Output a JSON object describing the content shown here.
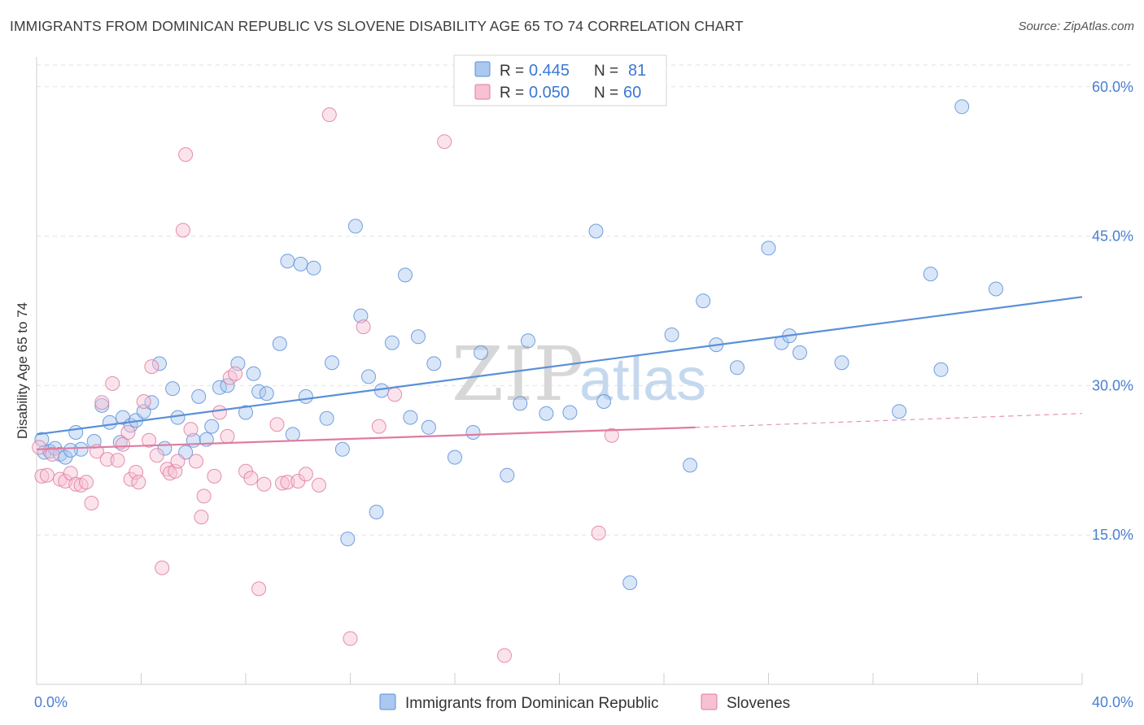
{
  "header": {
    "title": "IMMIGRANTS FROM DOMINICAN REPUBLIC VS SLOVENE DISABILITY AGE 65 TO 74 CORRELATION CHART",
    "source": "Source: ZipAtlas.com"
  },
  "watermark": {
    "zip": "ZIP",
    "atlas": "atlas"
  },
  "legend_stats": {
    "r_label": "R =",
    "n_label": "N =",
    "rows": [
      {
        "r": "0.445",
        "n": "81",
        "color": "#8fb6ea"
      },
      {
        "r": "0.050",
        "n": "60",
        "color": "#f4a6c0"
      }
    ]
  },
  "chart_data": {
    "type": "scatter",
    "title": "IMMIGRANTS FROM DOMINICAN REPUBLIC VS SLOVENE DISABILITY AGE 65 TO 74 CORRELATION CHART",
    "xlabel": "",
    "ylabel": "Disability Age 65 to 74",
    "xlim": [
      0,
      40
    ],
    "ylim": [
      0,
      63
    ],
    "x_tick_labels": [
      {
        "value": 0,
        "label": "0.0%"
      },
      {
        "value": 40,
        "label": "40.0%"
      }
    ],
    "y_tick_labels": [
      {
        "value": 15,
        "label": "15.0%"
      },
      {
        "value": 30,
        "label": "30.0%"
      },
      {
        "value": 45,
        "label": "45.0%"
      },
      {
        "value": 60,
        "label": "60.0%"
      }
    ],
    "grid": true,
    "legend_position": "bottom-center",
    "series": [
      {
        "name": "Immigrants from Dominican Republic",
        "color": "#5b8fd9",
        "fill": "#aac8f0",
        "trend": {
          "x": [
            0,
            40
          ],
          "y": [
            25.1,
            38.9
          ],
          "dashed_from": null
        },
        "points": [
          [
            0.3,
            23.3
          ],
          [
            0.5,
            23.4
          ],
          [
            0.7,
            23.7
          ],
          [
            0.9,
            23.1
          ],
          [
            1.1,
            22.8
          ],
          [
            1.5,
            25.3
          ],
          [
            1.7,
            23.6
          ],
          [
            2.2,
            24.4
          ],
          [
            2.5,
            28.0
          ],
          [
            2.8,
            26.3
          ],
          [
            3.2,
            24.3
          ],
          [
            3.3,
            26.8
          ],
          [
            3.6,
            26.0
          ],
          [
            3.8,
            26.5
          ],
          [
            4.1,
            27.4
          ],
          [
            4.4,
            28.3
          ],
          [
            4.7,
            32.2
          ],
          [
            4.9,
            23.7
          ],
          [
            5.2,
            29.7
          ],
          [
            5.4,
            26.8
          ],
          [
            5.7,
            23.3
          ],
          [
            6.0,
            24.5
          ],
          [
            6.2,
            28.9
          ],
          [
            6.5,
            24.6
          ],
          [
            6.7,
            25.9
          ],
          [
            7.0,
            29.8
          ],
          [
            7.3,
            30.0
          ],
          [
            7.7,
            32.2
          ],
          [
            8.0,
            27.3
          ],
          [
            8.3,
            31.2
          ],
          [
            8.5,
            29.4
          ],
          [
            8.8,
            29.2
          ],
          [
            9.3,
            34.2
          ],
          [
            9.6,
            42.5
          ],
          [
            9.8,
            25.1
          ],
          [
            10.1,
            42.2
          ],
          [
            10.3,
            28.9
          ],
          [
            10.6,
            41.8
          ],
          [
            11.1,
            26.7
          ],
          [
            11.3,
            32.3
          ],
          [
            11.7,
            23.6
          ],
          [
            11.9,
            14.6
          ],
          [
            12.2,
            46.0
          ],
          [
            12.4,
            37.0
          ],
          [
            12.7,
            30.9
          ],
          [
            13.0,
            17.3
          ],
          [
            13.2,
            29.5
          ],
          [
            13.6,
            34.3
          ],
          [
            14.1,
            41.1
          ],
          [
            14.3,
            26.8
          ],
          [
            14.6,
            34.9
          ],
          [
            15.0,
            25.8
          ],
          [
            15.2,
            32.2
          ],
          [
            16.0,
            22.8
          ],
          [
            16.7,
            25.3
          ],
          [
            17.0,
            33.3
          ],
          [
            18.0,
            21.0
          ],
          [
            18.5,
            28.2
          ],
          [
            18.8,
            34.5
          ],
          [
            19.5,
            27.2
          ],
          [
            20.4,
            27.3
          ],
          [
            21.4,
            45.5
          ],
          [
            21.7,
            28.4
          ],
          [
            22.7,
            10.2
          ],
          [
            24.3,
            35.1
          ],
          [
            25.0,
            22.0
          ],
          [
            25.5,
            38.5
          ],
          [
            26.0,
            34.1
          ],
          [
            26.8,
            31.8
          ],
          [
            28.0,
            43.8
          ],
          [
            28.5,
            34.3
          ],
          [
            28.8,
            35.0
          ],
          [
            29.2,
            33.3
          ],
          [
            30.8,
            32.3
          ],
          [
            33.0,
            27.4
          ],
          [
            34.2,
            41.2
          ],
          [
            34.6,
            31.6
          ],
          [
            35.4,
            58.0
          ],
          [
            36.7,
            39.7
          ],
          [
            0.2,
            24.6
          ],
          [
            1.3,
            23.5
          ]
        ]
      },
      {
        "name": "Slovenes",
        "color": "#e07ba0",
        "fill": "#f7c0d3",
        "trend": {
          "x": [
            0,
            25.2,
            40
          ],
          "y": [
            23.6,
            25.8,
            27.2
          ],
          "dashed_from": 25.2
        },
        "points": [
          [
            0.2,
            20.9
          ],
          [
            0.4,
            21.0
          ],
          [
            0.6,
            23.1
          ],
          [
            0.9,
            20.6
          ],
          [
            1.1,
            20.4
          ],
          [
            1.3,
            21.2
          ],
          [
            1.5,
            20.1
          ],
          [
            1.7,
            20.0
          ],
          [
            1.9,
            20.3
          ],
          [
            2.1,
            18.2
          ],
          [
            2.3,
            23.4
          ],
          [
            2.5,
            28.3
          ],
          [
            2.7,
            22.6
          ],
          [
            2.9,
            30.2
          ],
          [
            3.1,
            22.5
          ],
          [
            3.3,
            24.1
          ],
          [
            3.5,
            25.3
          ],
          [
            3.6,
            20.6
          ],
          [
            3.8,
            21.3
          ],
          [
            3.9,
            20.3
          ],
          [
            4.1,
            28.4
          ],
          [
            4.3,
            24.5
          ],
          [
            4.4,
            31.9
          ],
          [
            4.6,
            23.0
          ],
          [
            4.8,
            11.7
          ],
          [
            5.0,
            21.6
          ],
          [
            5.1,
            21.2
          ],
          [
            5.3,
            21.4
          ],
          [
            5.4,
            22.4
          ],
          [
            5.6,
            45.6
          ],
          [
            5.7,
            53.2
          ],
          [
            5.9,
            25.6
          ],
          [
            6.1,
            22.4
          ],
          [
            6.3,
            16.8
          ],
          [
            6.4,
            18.9
          ],
          [
            6.8,
            20.9
          ],
          [
            7.0,
            27.3
          ],
          [
            7.3,
            24.9
          ],
          [
            7.4,
            30.8
          ],
          [
            7.6,
            31.2
          ],
          [
            8.0,
            21.4
          ],
          [
            8.2,
            20.7
          ],
          [
            8.5,
            9.6
          ],
          [
            8.7,
            20.1
          ],
          [
            9.2,
            26.1
          ],
          [
            9.4,
            20.2
          ],
          [
            9.6,
            20.3
          ],
          [
            10.0,
            20.4
          ],
          [
            10.3,
            21.1
          ],
          [
            10.8,
            20.0
          ],
          [
            11.2,
            57.2
          ],
          [
            12.0,
            4.6
          ],
          [
            12.5,
            35.9
          ],
          [
            13.1,
            25.9
          ],
          [
            13.7,
            29.1
          ],
          [
            15.6,
            54.5
          ],
          [
            17.9,
            2.9
          ],
          [
            21.5,
            15.2
          ],
          [
            22.0,
            25.0
          ],
          [
            0.1,
            23.8
          ]
        ]
      }
    ]
  },
  "legend_bottom": [
    {
      "label": "Immigrants from Dominican Republic",
      "color": "#aac8f0",
      "border": "#5b8fd9"
    },
    {
      "label": "Slovenes",
      "color": "#f7c0d3",
      "border": "#e07ba0"
    }
  ]
}
